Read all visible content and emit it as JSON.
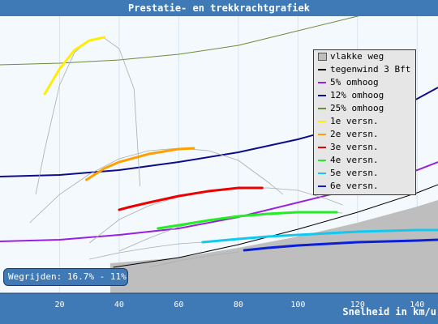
{
  "title": "Prestatie- en trekkrachtgrafiek",
  "badge": "Wegrijden: 16.7% - 11%",
  "colors": {
    "plot_bg": "#f4f9fd",
    "frame": "#3f7ab6",
    "flat_area": "#bebebe",
    "grid": "#d8e4f0"
  },
  "chart_data": {
    "type": "line",
    "title": "Prestatie- en trekkrachtgrafiek",
    "xlabel": "Snelheid in km/u",
    "ylabel": "",
    "xlim": [
      0,
      147
    ],
    "x_ticks": [
      20,
      40,
      60,
      80,
      100,
      120,
      140
    ],
    "grid": true,
    "legend_position": "right",
    "legend": [
      {
        "label": "vlakke weg",
        "color": "#bebebe",
        "kind": "area"
      },
      {
        "label": "tegenwind 3 Bft",
        "color": "#000000",
        "kind": "line"
      },
      {
        "label": "5% omhoog",
        "color": "#9a20e0",
        "kind": "line"
      },
      {
        "label": "12% omhoog",
        "color": "#0c0c8c",
        "kind": "line"
      },
      {
        "label": "25% omhoog",
        "color": "#6b8c3a",
        "kind": "line"
      },
      {
        "label": "1e versn.",
        "color": "#ffee00",
        "kind": "line"
      },
      {
        "label": "2e versn.",
        "color": "#ffa000",
        "kind": "line"
      },
      {
        "label": "3e versn.",
        "color": "#ee0000",
        "kind": "line"
      },
      {
        "label": "4e versn.",
        "color": "#22ee22",
        "kind": "line"
      },
      {
        "label": "5e versn.",
        "color": "#10c8f0",
        "kind": "line"
      },
      {
        "label": "6e versn.",
        "color": "#0a20d8",
        "kind": "line"
      }
    ],
    "resistance": [
      {
        "name": "vlakke weg",
        "kind": "area",
        "color": "#bebebe",
        "x": [
          37,
          60,
          80,
          100,
          120,
          140,
          147
        ],
        "y": [
          325,
          318,
          306,
          292,
          275,
          255,
          247
        ]
      },
      {
        "name": "tegenwind 3 Bft",
        "color": "#000000",
        "width": 1,
        "x": [
          38,
          60,
          80,
          100,
          120,
          140,
          147
        ],
        "y": [
          330,
          318,
          302,
          283,
          262,
          238,
          228
        ]
      },
      {
        "name": "5% omhoog",
        "color": "#9a20e0",
        "width": 2,
        "x": [
          0,
          20,
          40,
          60,
          80,
          100,
          120,
          140,
          147
        ],
        "y": [
          298,
          296,
          290,
          282,
          268,
          250,
          232,
          210,
          200
        ]
      },
      {
        "name": "12% omhoog",
        "color": "#0c0c8c",
        "width": 2,
        "x": [
          0,
          20,
          40,
          60,
          80,
          100,
          120,
          140,
          147
        ],
        "y": [
          218,
          216,
          210,
          200,
          188,
          172,
          152,
          122,
          108
        ]
      },
      {
        "name": "25% omhoog",
        "color": "#6b8c3a",
        "width": 1,
        "x": [
          0,
          20,
          40,
          60,
          80,
          100,
          120,
          140,
          147
        ],
        "y": [
          80,
          78,
          74,
          67,
          56,
          38,
          20,
          -5,
          -15
        ]
      }
    ],
    "gears": [
      {
        "name": "1e versn.",
        "color": "#ffee00",
        "thin_x": [
          12,
          15,
          20,
          25,
          30,
          35,
          40,
          45,
          47
        ],
        "thin_y": [
          240,
          185,
          105,
          65,
          49,
          47,
          60,
          110,
          230
        ],
        "bold_x": [
          15,
          20,
          25,
          30,
          35
        ],
        "bold_y": [
          116,
          85,
          62,
          50,
          46
        ]
      },
      {
        "name": "2e versn.",
        "color": "#ffa000",
        "thin_x": [
          10,
          20,
          30,
          40,
          50,
          60,
          70,
          80,
          90,
          95
        ],
        "thin_y": [
          275,
          240,
          215,
          196,
          186,
          183,
          186,
          198,
          225,
          240
        ],
        "bold_x": [
          29,
          35,
          40,
          50,
          60,
          65
        ],
        "bold_y": [
          222,
          208,
          200,
          190,
          184,
          183
        ]
      },
      {
        "name": "3e versn.",
        "color": "#ee0000",
        "thin_x": [
          30,
          40,
          50,
          60,
          70,
          80,
          90,
          100,
          110,
          115
        ],
        "thin_y": [
          300,
          271,
          254,
          243,
          236,
          232,
          232,
          235,
          246,
          253
        ],
        "bold_x": [
          40,
          43,
          50,
          60,
          70,
          80,
          88
        ],
        "bold_y": [
          259,
          256,
          250,
          242,
          236,
          232,
          232
        ]
      },
      {
        "name": "4e versn.",
        "color": "#22ee22",
        "thin_x": [
          40,
          50,
          60,
          70,
          80,
          90,
          100,
          110,
          115
        ],
        "thin_y": [
          310,
          294,
          280,
          272,
          266,
          263,
          262,
          262,
          263
        ],
        "bold_x": [
          53,
          60,
          70,
          80,
          90,
          100,
          108,
          113
        ],
        "bold_y": [
          282,
          278,
          272,
          267,
          264,
          262,
          262,
          262
        ]
      },
      {
        "name": "5e versn.",
        "color": "#10c8f0",
        "thin_x": [
          30,
          40,
          50,
          60,
          68
        ],
        "thin_y": [
          320,
          312,
          306,
          301,
          299
        ],
        "bold_x": [
          68,
          80,
          90,
          100,
          110,
          120,
          130,
          140,
          147
        ],
        "bold_y": [
          299,
          295,
          292,
          290,
          288,
          286,
          285,
          284,
          284
        ]
      },
      {
        "name": "6e versn.",
        "color": "#0a20d8",
        "thin_x": [
          50,
          60,
          70,
          80
        ],
        "thin_y": [
          330,
          322,
          316,
          311
        ],
        "bold_x": [
          82,
          90,
          100,
          110,
          120,
          130,
          140,
          147
        ],
        "bold_y": [
          309,
          306,
          303,
          301,
          299,
          298,
          297,
          296
        ]
      }
    ]
  }
}
